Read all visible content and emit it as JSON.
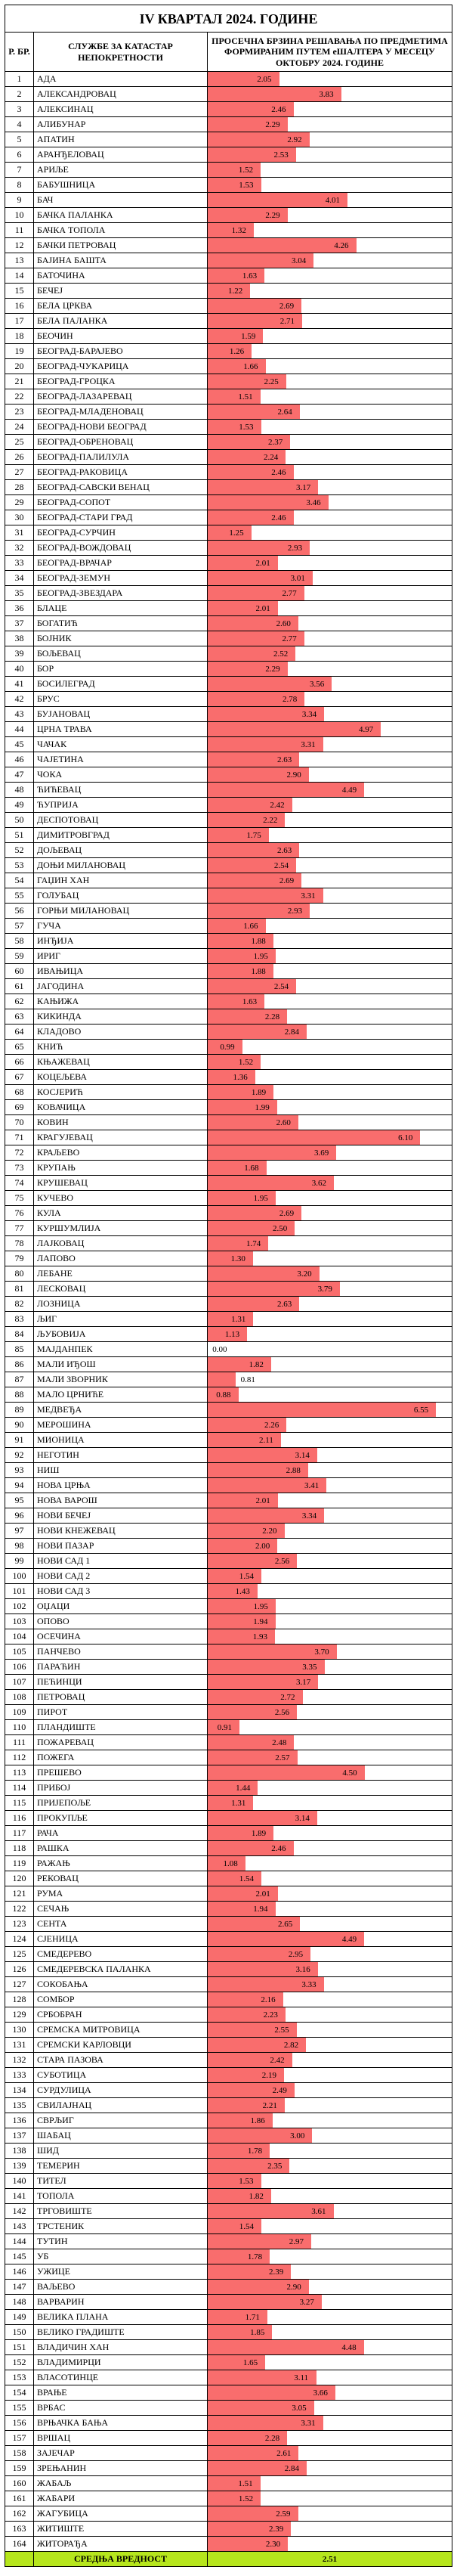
{
  "report": {
    "title": "IV КВАРТАЛ 2024. ГОДИНЕ",
    "header_idx": "Р. БР.",
    "header_name": "СЛУЖБЕ ЗА КАТАСТАР НЕПОКРЕТНОСТИ",
    "header_val": "ПРОСЕЧНА БРЗИНА РЕШАВАЊА ПО ПРЕДМЕТИМА ФОРМИРАНИМ ПУТЕМ еШАЛТЕРА У МЕСЕЦУ ОКТОБРУ 2024. ГОДИНЕ",
    "avg_label": "СРЕДЊА ВРЕДНОСТ",
    "avg_value": "2.51",
    "bar_color": "#f96d6d",
    "avg_bg": "#b6e61d",
    "scale_max": 7.0,
    "rows": [
      {
        "n": "1",
        "name": "АДА",
        "v": "2.05"
      },
      {
        "n": "2",
        "name": "АЛЕКСАНДРОВАЦ",
        "v": "3.83"
      },
      {
        "n": "3",
        "name": "АЛЕКСИНАЦ",
        "v": "2.46"
      },
      {
        "n": "4",
        "name": "АЛИБУНАР",
        "v": "2.29"
      },
      {
        "n": "5",
        "name": "АПАТИН",
        "v": "2.92"
      },
      {
        "n": "6",
        "name": "АРАНЂЕЛОВАЦ",
        "v": "2.53"
      },
      {
        "n": "7",
        "name": "АРИЉЕ",
        "v": "1.52"
      },
      {
        "n": "8",
        "name": "БАБУШНИЦА",
        "v": "1.53"
      },
      {
        "n": "9",
        "name": "БАЧ",
        "v": "4.01"
      },
      {
        "n": "10",
        "name": "БАЧКА ПАЛАНКА",
        "v": "2.29"
      },
      {
        "n": "11",
        "name": "БАЧКА ТОПОЛА",
        "v": "1.32"
      },
      {
        "n": "12",
        "name": "БАЧКИ ПЕТРОВАЦ",
        "v": "4.26"
      },
      {
        "n": "13",
        "name": "БАЈИНА БАШТА",
        "v": "3.04"
      },
      {
        "n": "14",
        "name": "БАТОЧИНА",
        "v": "1.63"
      },
      {
        "n": "15",
        "name": "БЕЧЕЈ",
        "v": "1.22"
      },
      {
        "n": "16",
        "name": "БЕЛА ЦРКВА",
        "v": "2.69"
      },
      {
        "n": "17",
        "name": "БЕЛА ПАЛАНКА",
        "v": "2.71"
      },
      {
        "n": "18",
        "name": "БЕОЧИН",
        "v": "1.59"
      },
      {
        "n": "19",
        "name": "БЕОГРАД-БАРАЈЕВО",
        "v": "1.26"
      },
      {
        "n": "20",
        "name": "БЕОГРАД-ЧУКАРИЦА",
        "v": "1.66"
      },
      {
        "n": "21",
        "name": "БЕОГРАД-ГРОЦКА",
        "v": "2.25"
      },
      {
        "n": "22",
        "name": "БЕОГРАД-ЛАЗАРЕВАЦ",
        "v": "1.51"
      },
      {
        "n": "23",
        "name": "БЕОГРАД-МЛАДЕНОВАЦ",
        "v": "2.64"
      },
      {
        "n": "24",
        "name": "БЕОГРАД-НОВИ БЕОГРАД",
        "v": "1.53"
      },
      {
        "n": "25",
        "name": "БЕОГРАД-ОБРЕНОВАЦ",
        "v": "2.37"
      },
      {
        "n": "26",
        "name": "БЕОГРАД-ПАЛИЛУЛА",
        "v": "2.24"
      },
      {
        "n": "27",
        "name": "БЕОГРАД-РАКОВИЦА",
        "v": "2.46"
      },
      {
        "n": "28",
        "name": "БЕОГРАД-САВСКИ ВЕНАЦ",
        "v": "3.17"
      },
      {
        "n": "29",
        "name": "БЕОГРАД-СОПОТ",
        "v": "3.46"
      },
      {
        "n": "30",
        "name": "БЕОГРАД-СТАРИ ГРАД",
        "v": "2.46"
      },
      {
        "n": "31",
        "name": "БЕОГРАД-СУРЧИН",
        "v": "1.25"
      },
      {
        "n": "32",
        "name": "БЕОГРАД-ВОЖДОВАЦ",
        "v": "2.93"
      },
      {
        "n": "33",
        "name": "БЕОГРАД-ВРАЧАР",
        "v": "2.01"
      },
      {
        "n": "34",
        "name": "БЕОГРАД-ЗЕМУН",
        "v": "3.01"
      },
      {
        "n": "35",
        "name": "БЕОГРАД-ЗВЕЗДАРА",
        "v": "2.77"
      },
      {
        "n": "36",
        "name": "БЛАЦЕ",
        "v": "2.01"
      },
      {
        "n": "37",
        "name": "БОГАТИЋ",
        "v": "2.60"
      },
      {
        "n": "38",
        "name": "БОЈНИК",
        "v": "2.77"
      },
      {
        "n": "39",
        "name": "БОЉЕВАЦ",
        "v": "2.52"
      },
      {
        "n": "40",
        "name": "БОР",
        "v": "2.29"
      },
      {
        "n": "41",
        "name": "БОСИЛЕГРАД",
        "v": "3.56"
      },
      {
        "n": "42",
        "name": "БРУС",
        "v": "2.78"
      },
      {
        "n": "43",
        "name": "БУЈАНОВАЦ",
        "v": "3.34"
      },
      {
        "n": "44",
        "name": "ЦРНА ТРАВА",
        "v": "4.97"
      },
      {
        "n": "45",
        "name": "ЧАЧАК",
        "v": "3.31"
      },
      {
        "n": "46",
        "name": "ЧАЈЕТИНА",
        "v": "2.63"
      },
      {
        "n": "47",
        "name": "ЧОКА",
        "v": "2.90"
      },
      {
        "n": "48",
        "name": "ЋИЋЕВАЦ",
        "v": "4.49"
      },
      {
        "n": "49",
        "name": "ЋУПРИЈА",
        "v": "2.42"
      },
      {
        "n": "50",
        "name": "ДЕСПОТОВАЦ",
        "v": "2.22"
      },
      {
        "n": "51",
        "name": "ДИМИТРОВГРАД",
        "v": "1.75"
      },
      {
        "n": "52",
        "name": "ДОЉЕВАЦ",
        "v": "2.63"
      },
      {
        "n": "53",
        "name": "ДОЊИ МИЛАНОВАЦ",
        "v": "2.54"
      },
      {
        "n": "54",
        "name": "ГАЏИН ХАН",
        "v": "2.69"
      },
      {
        "n": "55",
        "name": "ГОЛУБАЦ",
        "v": "3.31"
      },
      {
        "n": "56",
        "name": "ГОРЊИ МИЛАНОВАЦ",
        "v": "2.93"
      },
      {
        "n": "57",
        "name": "ГУЧА",
        "v": "1.66"
      },
      {
        "n": "58",
        "name": "ИНЂИЈА",
        "v": "1.88"
      },
      {
        "n": "59",
        "name": "ИРИГ",
        "v": "1.95"
      },
      {
        "n": "60",
        "name": "ИВАЊИЦА",
        "v": "1.88"
      },
      {
        "n": "61",
        "name": "ЈАГОДИНА",
        "v": "2.54"
      },
      {
        "n": "62",
        "name": "КАЊИЖА",
        "v": "1.63"
      },
      {
        "n": "63",
        "name": "КИКИНДА",
        "v": "2.28"
      },
      {
        "n": "64",
        "name": "КЛАДОВО",
        "v": "2.84"
      },
      {
        "n": "65",
        "name": "КНИЋ",
        "v": "0.99"
      },
      {
        "n": "66",
        "name": "КЊАЖЕВАЦ",
        "v": "1.52"
      },
      {
        "n": "67",
        "name": "КОЦЕЉЕВА",
        "v": "1.36"
      },
      {
        "n": "68",
        "name": "КОСЈЕРИЋ",
        "v": "1.89"
      },
      {
        "n": "69",
        "name": "КОВАЧИЦА",
        "v": "1.99"
      },
      {
        "n": "70",
        "name": "КОВИН",
        "v": "2.60"
      },
      {
        "n": "71",
        "name": "КРАГУЈЕВАЦ",
        "v": "6.10"
      },
      {
        "n": "72",
        "name": "КРАЉЕВО",
        "v": "3.69"
      },
      {
        "n": "73",
        "name": "КРУПАЊ",
        "v": "1.68"
      },
      {
        "n": "74",
        "name": "КРУШЕВАЦ",
        "v": "3.62"
      },
      {
        "n": "75",
        "name": "КУЧЕВО",
        "v": "1.95"
      },
      {
        "n": "76",
        "name": "КУЛА",
        "v": "2.69"
      },
      {
        "n": "77",
        "name": "КУРШУМЛИЈА",
        "v": "2.50"
      },
      {
        "n": "78",
        "name": "ЛАЈКОВАЦ",
        "v": "1.74"
      },
      {
        "n": "79",
        "name": "ЛАПОВО",
        "v": "1.30"
      },
      {
        "n": "80",
        "name": "ЛЕБАНЕ",
        "v": "3.20"
      },
      {
        "n": "81",
        "name": "ЛЕСКОВАЦ",
        "v": "3.79"
      },
      {
        "n": "82",
        "name": "ЛОЗНИЦА",
        "v": "2.63"
      },
      {
        "n": "83",
        "name": "ЉИГ",
        "v": "1.31"
      },
      {
        "n": "84",
        "name": "ЉУБОВИЈА",
        "v": "1.13"
      },
      {
        "n": "85",
        "name": "МАЈДАНПЕК",
        "v": "0.00"
      },
      {
        "n": "86",
        "name": "МАЛИ ИЂОШ",
        "v": "1.82"
      },
      {
        "n": "87",
        "name": "МАЛИ ЗВОРНИК",
        "v": "0.81"
      },
      {
        "n": "88",
        "name": "МАЛО ЦРНИЋЕ",
        "v": "0.88"
      },
      {
        "n": "89",
        "name": "МЕДВЕЂА",
        "v": "6.55"
      },
      {
        "n": "90",
        "name": "МЕРОШИНА",
        "v": "2.26"
      },
      {
        "n": "91",
        "name": "МИОНИЦА",
        "v": "2.11"
      },
      {
        "n": "92",
        "name": "НЕГОТИН",
        "v": "3.14"
      },
      {
        "n": "93",
        "name": "НИШ",
        "v": "2.88"
      },
      {
        "n": "94",
        "name": "НОВА ЦРЊА",
        "v": "3.41"
      },
      {
        "n": "95",
        "name": "НОВА ВАРОШ",
        "v": "2.01"
      },
      {
        "n": "96",
        "name": "НОВИ БЕЧЕЈ",
        "v": "3.34"
      },
      {
        "n": "97",
        "name": "НОВИ КНЕЖЕВАЦ",
        "v": "2.20"
      },
      {
        "n": "98",
        "name": "НОВИ ПАЗАР",
        "v": "2.00"
      },
      {
        "n": "99",
        "name": "НОВИ САД 1",
        "v": "2.56"
      },
      {
        "n": "100",
        "name": "НОВИ САД 2",
        "v": "1.54"
      },
      {
        "n": "101",
        "name": "НОВИ САД 3",
        "v": "1.43"
      },
      {
        "n": "102",
        "name": "ОЏАЦИ",
        "v": "1.95"
      },
      {
        "n": "103",
        "name": "ОПОВО",
        "v": "1.94"
      },
      {
        "n": "104",
        "name": "ОСЕЧИНА",
        "v": "1.93"
      },
      {
        "n": "105",
        "name": "ПАНЧЕВО",
        "v": "3.70"
      },
      {
        "n": "106",
        "name": "ПАРАЋИН",
        "v": "3.35"
      },
      {
        "n": "107",
        "name": "ПЕЋИНЦИ",
        "v": "3.17"
      },
      {
        "n": "108",
        "name": "ПЕТРОВАЦ",
        "v": "2.72"
      },
      {
        "n": "109",
        "name": "ПИРОТ",
        "v": "2.56"
      },
      {
        "n": "110",
        "name": "ПЛАНДИШТЕ",
        "v": "0.91"
      },
      {
        "n": "111",
        "name": "ПОЖАРЕВАЦ",
        "v": "2.48"
      },
      {
        "n": "112",
        "name": "ПОЖЕГА",
        "v": "2.57"
      },
      {
        "n": "113",
        "name": "ПРЕШЕВО",
        "v": "4.50"
      },
      {
        "n": "114",
        "name": "ПРИБОЈ",
        "v": "1.44"
      },
      {
        "n": "115",
        "name": "ПРИЈЕПОЉЕ",
        "v": "1.31"
      },
      {
        "n": "116",
        "name": "ПРОКУПЉЕ",
        "v": "3.14"
      },
      {
        "n": "117",
        "name": "РАЧА",
        "v": "1.89"
      },
      {
        "n": "118",
        "name": "РАШКА",
        "v": "2.46"
      },
      {
        "n": "119",
        "name": "РАЖАЊ",
        "v": "1.08"
      },
      {
        "n": "120",
        "name": "РЕКОВАЦ",
        "v": "1.54"
      },
      {
        "n": "121",
        "name": "РУМА",
        "v": "2.01"
      },
      {
        "n": "122",
        "name": "СЕЧАЊ",
        "v": "1.94"
      },
      {
        "n": "123",
        "name": "СЕНТА",
        "v": "2.65"
      },
      {
        "n": "124",
        "name": "СЈЕНИЦА",
        "v": "4.49"
      },
      {
        "n": "125",
        "name": "СМЕДЕРЕВО",
        "v": "2.95"
      },
      {
        "n": "126",
        "name": "СМЕДЕРЕВСКА ПАЛАНКА",
        "v": "3.16"
      },
      {
        "n": "127",
        "name": "СОКОБАЊА",
        "v": "3.33"
      },
      {
        "n": "128",
        "name": "СОМБОР",
        "v": "2.16"
      },
      {
        "n": "129",
        "name": "СРБОБРАН",
        "v": "2.23"
      },
      {
        "n": "130",
        "name": "СРЕМСКА МИТРОВИЦА",
        "v": "2.55"
      },
      {
        "n": "131",
        "name": "СРЕМСКИ КАРЛОВЦИ",
        "v": "2.82"
      },
      {
        "n": "132",
        "name": "СТАРА ПАЗОВА",
        "v": "2.42"
      },
      {
        "n": "133",
        "name": "СУБОТИЦА",
        "v": "2.19"
      },
      {
        "n": "134",
        "name": "СУРДУЛИЦА",
        "v": "2.49"
      },
      {
        "n": "135",
        "name": "СВИЛАЈНАЦ",
        "v": "2.21"
      },
      {
        "n": "136",
        "name": "СВРЉИГ",
        "v": "1.86"
      },
      {
        "n": "137",
        "name": "ШАБАЦ",
        "v": "3.00"
      },
      {
        "n": "138",
        "name": "ШИД",
        "v": "1.78"
      },
      {
        "n": "139",
        "name": "ТЕМЕРИН",
        "v": "2.35"
      },
      {
        "n": "140",
        "name": "ТИТЕЛ",
        "v": "1.53"
      },
      {
        "n": "141",
        "name": "ТОПОЛА",
        "v": "1.82"
      },
      {
        "n": "142",
        "name": "ТРГОВИШТЕ",
        "v": "3.61"
      },
      {
        "n": "143",
        "name": "ТРСТЕНИК",
        "v": "1.54"
      },
      {
        "n": "144",
        "name": "ТУТИН",
        "v": "2.97"
      },
      {
        "n": "145",
        "name": "УБ",
        "v": "1.78"
      },
      {
        "n": "146",
        "name": "УЖИЦЕ",
        "v": "2.39"
      },
      {
        "n": "147",
        "name": "ВАЉЕВО",
        "v": "2.90"
      },
      {
        "n": "148",
        "name": "ВАРВАРИН",
        "v": "3.27"
      },
      {
        "n": "149",
        "name": "ВЕЛИКА ПЛАНА",
        "v": "1.71"
      },
      {
        "n": "150",
        "name": "ВЕЛИКО ГРАДИШТЕ",
        "v": "1.85"
      },
      {
        "n": "151",
        "name": "ВЛАДИЧИН ХАН",
        "v": "4.48"
      },
      {
        "n": "152",
        "name": "ВЛАДИМИРЦИ",
        "v": "1.65"
      },
      {
        "n": "153",
        "name": "ВЛАСОТИНЦЕ",
        "v": "3.11"
      },
      {
        "n": "154",
        "name": "ВРАЊЕ",
        "v": "3.66"
      },
      {
        "n": "155",
        "name": "ВРБАС",
        "v": "3.05"
      },
      {
        "n": "156",
        "name": "ВРЊАЧКА БАЊА",
        "v": "3.31"
      },
      {
        "n": "157",
        "name": "ВРШАЦ",
        "v": "2.28"
      },
      {
        "n": "158",
        "name": "ЗАЈЕЧАР",
        "v": "2.61"
      },
      {
        "n": "159",
        "name": "ЗРЕЊАНИН",
        "v": "2.84"
      },
      {
        "n": "160",
        "name": "ЖАБАЉ",
        "v": "1.51"
      },
      {
        "n": "161",
        "name": "ЖАБАРИ",
        "v": "1.52"
      },
      {
        "n": "162",
        "name": "ЖАГУБИЦА",
        "v": "2.59"
      },
      {
        "n": "163",
        "name": "ЖИТИШТЕ",
        "v": "2.39"
      },
      {
        "n": "164",
        "name": "ЖИТОРАЂА",
        "v": "2.30"
      }
    ]
  }
}
